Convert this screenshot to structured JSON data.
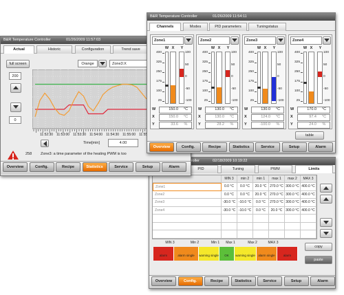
{
  "window_trend": {
    "title": "B&R Temperature Controller",
    "datetime": "01/26/2009 11:57:03",
    "tabs": [
      "Actual",
      "Historic",
      "Configuration",
      "Trend save"
    ],
    "full_screen": "full screen",
    "y_max": "200",
    "y_min": "0",
    "color_select": "Orange",
    "channel_select": "Zone3:X",
    "trend": [
      {
        "color": "#3cb44b",
        "values": [
          150,
          150,
          150,
          150,
          150,
          150,
          150,
          150,
          150,
          150,
          150,
          150,
          150,
          150,
          150,
          150,
          150,
          150,
          150,
          150,
          150,
          150,
          150,
          150
        ]
      },
      {
        "color": "#e0283c",
        "values": [
          65,
          65,
          65,
          65,
          65,
          65,
          65,
          80,
          80,
          80,
          80,
          50,
          50,
          50,
          50,
          65,
          65,
          65,
          65,
          65,
          65,
          65,
          65,
          65
        ]
      },
      {
        "color": "#f39c33",
        "values": [
          40,
          95,
          120,
          100,
          70,
          50,
          45,
          60,
          95,
          125,
          110,
          75,
          60,
          85,
          115,
          130,
          140,
          145,
          150,
          150,
          148,
          140,
          120,
          100
        ]
      }
    ],
    "time_axis": [
      "11:52:30",
      "11:53:00",
      "11:53:30",
      "11:54:00",
      "11:54:30",
      "11:55:00",
      "11:55:30"
    ],
    "time_label": "Time[min]",
    "time_value": "4.00",
    "alarm_number": "258",
    "alarm_text": "Zone3: a time parameter of the heating PWM is too",
    "nav": [
      "Overview",
      "Config.",
      "Recipe",
      "Statistics",
      "Service",
      "Setup",
      "Alarm"
    ]
  },
  "window_channels": {
    "title": "B&R Temperature Controller",
    "datetime": "01/26/2009 11:54:11",
    "tabs": [
      "Channels",
      "Modes",
      "PID parameters",
      "Tuningstatus"
    ],
    "gauge_headers": [
      "W",
      "X",
      "Y"
    ],
    "temp_scale": [
      400,
      325,
      250,
      175,
      100,
      25
    ],
    "y_scale": [
      100,
      50,
      0,
      -50,
      -100
    ],
    "row_labels": [
      "W",
      "X",
      "Y"
    ],
    "zones": [
      {
        "name": "Zone1",
        "values": [
          "150.0",
          "150.0",
          "33.6"
        ],
        "units": [
          "°C",
          "°C",
          "%"
        ]
      },
      {
        "name": "Zone2",
        "values": [
          "130.0",
          "130.0",
          "28.2"
        ],
        "units": [
          "°C",
          "°C",
          "%"
        ]
      },
      {
        "name": "Zone3",
        "values": [
          "130.0",
          "124.0",
          "-100.0"
        ],
        "units": [
          "°C",
          "°C",
          "%"
        ]
      },
      {
        "name": "Zone4",
        "values": [
          "170.0",
          "97.4",
          "24.0"
        ],
        "units": [
          "°C",
          "°C",
          "%"
        ]
      }
    ],
    "table_button": "table",
    "nav": [
      "Overview",
      "Config.",
      "Recipe",
      "Statistics",
      "Service",
      "Setup",
      "Alarm"
    ]
  },
  "window_limits": {
    "title": "B&R Temperature Controller",
    "datetime": "02/18/2009 10:19:22",
    "tabs": [
      "PID",
      "Tuning",
      "PWM",
      "Limits"
    ],
    "columns": [
      "MIN 3",
      "min 2",
      "min 1",
      "max 1",
      "max 2",
      "MAX 3"
    ],
    "rows": [
      {
        "zone": "Zone1",
        "values": [
          "0.0 °C",
          "0.0 °C",
          "20.0 °C",
          "270.0 °C",
          "300.0 °C",
          "400.0 °C"
        ]
      },
      {
        "zone": "Zone2",
        "values": [
          "0.0 °C",
          "0.0 °C",
          "20.0 °C",
          "270.0 °C",
          "300.0 °C",
          "400.0 °C"
        ]
      },
      {
        "zone": "Zone3",
        "values": [
          "-30.0 °C",
          "-10.0 °C",
          "0.0 °C",
          "270.0 °C",
          "300.0 °C",
          "400.0 °C"
        ]
      },
      {
        "zone": "Zone4",
        "values": [
          "-30.0 °C",
          "-10.0 °C",
          "0.0 °C",
          "20.0 °C",
          "300.0 °C",
          "400.0 °C"
        ]
      }
    ],
    "legend_labels": [
      "MIN 3",
      "Min 2",
      "Min 1",
      "Max 1",
      "Max 2",
      "MAX 3"
    ],
    "segments": [
      "alarm",
      "alarm single",
      "warning single",
      "OK temperature",
      "warning single",
      "alarm single",
      "alarm"
    ],
    "copy": "copy",
    "paste": "paste",
    "nav": [
      "Overview",
      "Config.",
      "Recipe",
      "Statistics",
      "Service",
      "Setup",
      "Alarm"
    ]
  }
}
